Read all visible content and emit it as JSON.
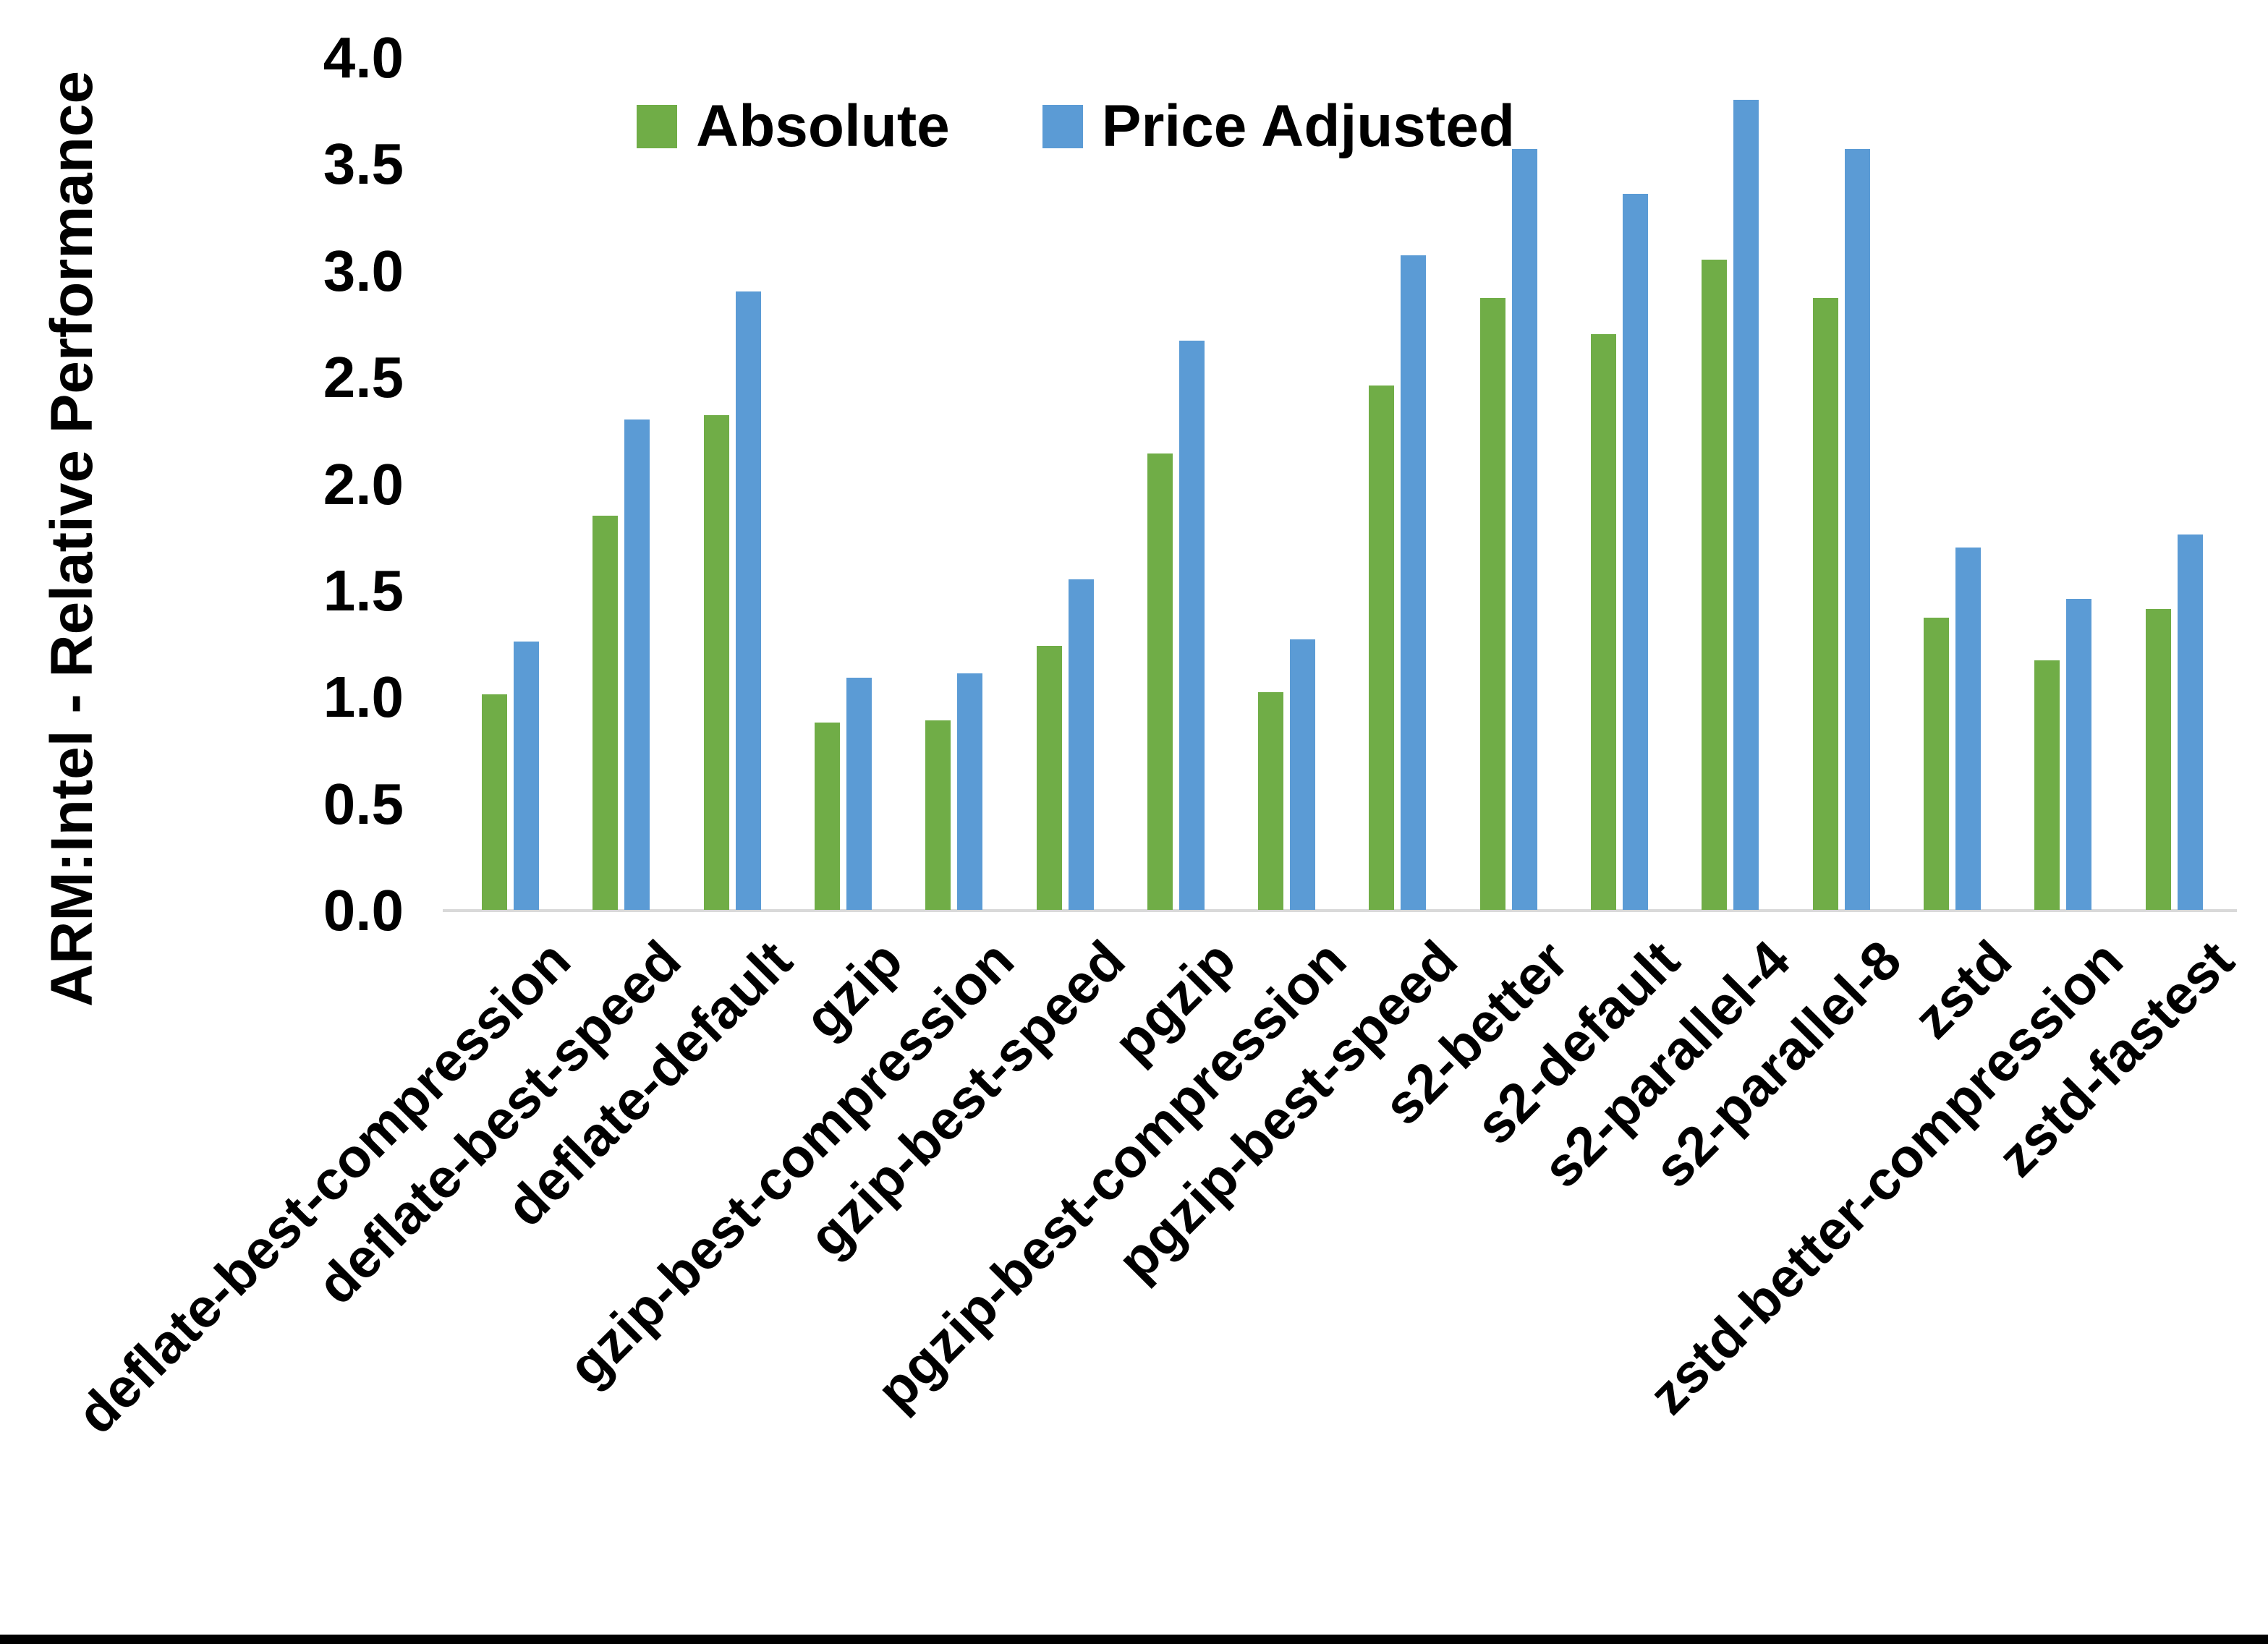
{
  "chart_data": {
    "type": "bar",
    "title": "",
    "xlabel": "",
    "ylabel": "ARM:Intel - Relative Performance",
    "ylim": [
      0.0,
      4.0
    ],
    "ytick_labels": [
      "0.0",
      "0.5",
      "1.0",
      "1.5",
      "2.0",
      "2.5",
      "3.0",
      "3.5",
      "4.0"
    ],
    "grid": false,
    "legend_position": "top",
    "categories": [
      "deflate-best-compression",
      "deflate-best-speed",
      "deflate-default",
      "gzip",
      "gzip-best-compression",
      "gzip-best-speed",
      "pgzip",
      "pgzip-best-compression",
      "pgzip-best-speed",
      "s2-better",
      "s2-default",
      "s2-parallel-4",
      "s2-parallel-8",
      "zstd",
      "zstd-better-compression",
      "zstd-fastest"
    ],
    "series": [
      {
        "name": "Absolute",
        "color": "#70AD47",
        "values": [
          1.01,
          1.85,
          2.32,
          0.88,
          0.89,
          1.24,
          2.14,
          1.02,
          2.46,
          2.87,
          2.7,
          3.05,
          2.87,
          1.37,
          1.17,
          1.41
        ]
      },
      {
        "name": "Price Adjusted",
        "color": "#5B9BD5",
        "values": [
          1.26,
          2.3,
          2.9,
          1.09,
          1.11,
          1.55,
          2.67,
          1.27,
          3.07,
          3.57,
          3.36,
          3.8,
          3.57,
          1.7,
          1.46,
          1.76
        ]
      }
    ],
    "axis_line_color": "#D9D9D9",
    "bottom_border_color": "#000000"
  }
}
